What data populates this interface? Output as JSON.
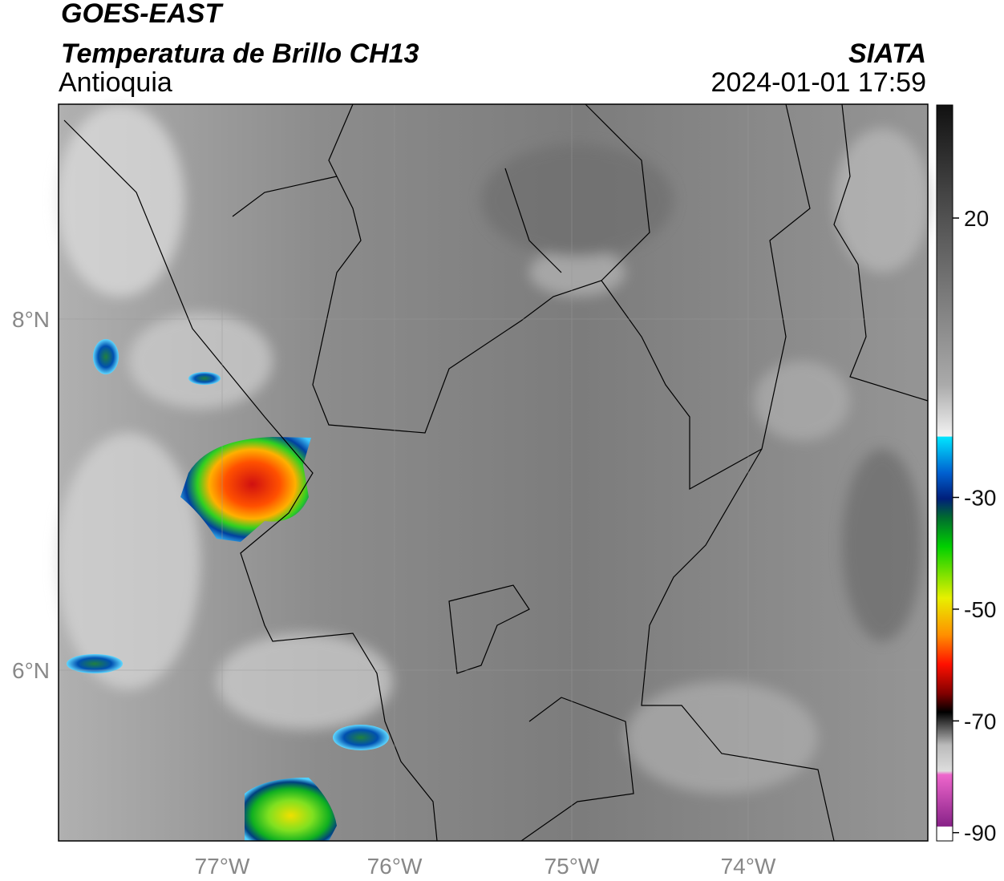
{
  "header": {
    "source": "GOES-EAST",
    "product": "Temperatura de Brillo CH13",
    "region": "Antioquia",
    "agency": "SIATA",
    "timestamp": "2024-01-01 17:59"
  },
  "map": {
    "lat_labels": [
      "8°N",
      "6°N"
    ],
    "lon_labels": [
      "77°W",
      "76°W",
      "75°W",
      "74°W"
    ]
  },
  "colorbar": {
    "ticks": [
      20,
      -30,
      -50,
      -70,
      -90
    ]
  }
}
